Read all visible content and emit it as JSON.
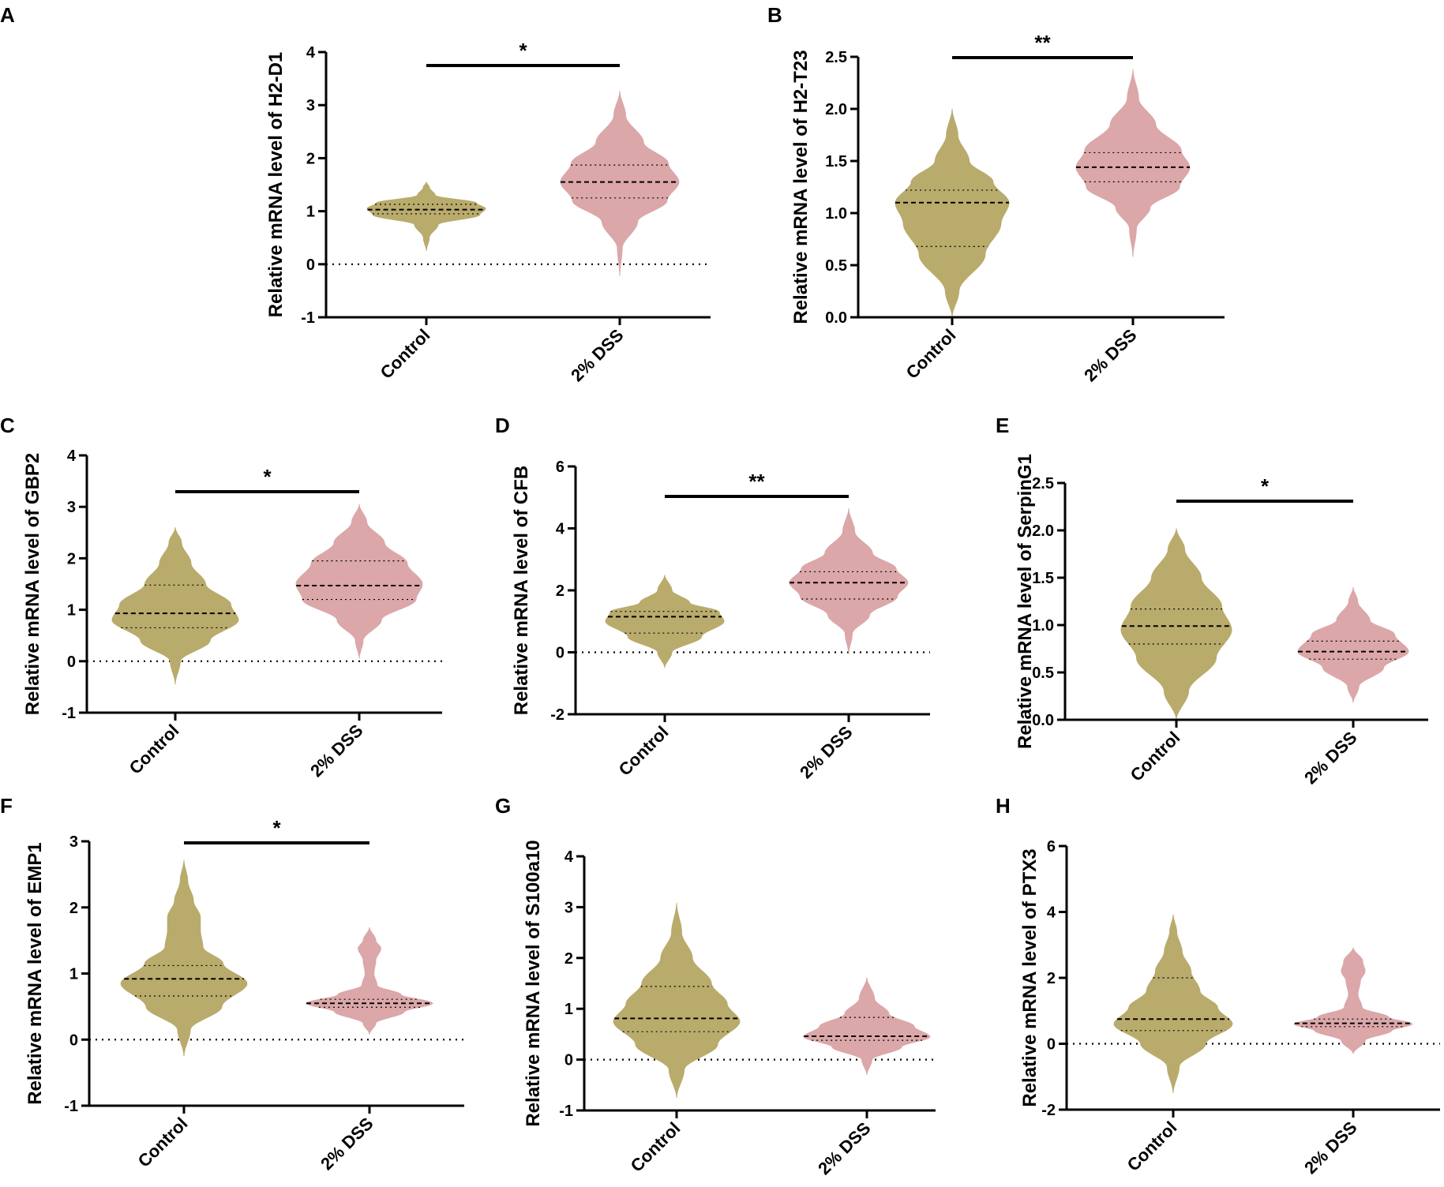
{
  "figure": {
    "colors": {
      "control": "#b9ab6c",
      "dss": "#dba7a9",
      "axis": "#000000"
    },
    "categories": [
      "Control",
      "2% DSS"
    ]
  },
  "chart_data": [
    {
      "panel": "A",
      "type": "violin",
      "ylabel": "Relative mRNA level of H2-D1",
      "ylim": [
        -1,
        4
      ],
      "yticks": [
        "-1",
        "0",
        "1",
        "2",
        "3",
        "4"
      ],
      "zero_line": true,
      "categories": [
        "Control",
        "2% DSS"
      ],
      "significance": "*",
      "series": [
        {
          "name": "Control",
          "min": 0.25,
          "max": 1.55,
          "q1": 0.95,
          "median": 1.03,
          "q3": 1.13,
          "shape": [
            [
              0.25,
              0
            ],
            [
              0.5,
              0.05
            ],
            [
              0.75,
              0.2
            ],
            [
              0.93,
              0.9
            ],
            [
              1.05,
              1
            ],
            [
              1.15,
              0.85
            ],
            [
              1.3,
              0.15
            ],
            [
              1.45,
              0.05
            ],
            [
              1.55,
              0
            ]
          ]
        },
        {
          "name": "2% DSS",
          "min": -0.22,
          "max": 3.27,
          "q1": 1.25,
          "median": 1.55,
          "q3": 1.87,
          "shape": [
            [
              -0.22,
              0
            ],
            [
              0.3,
              0.04
            ],
            [
              0.8,
              0.3
            ],
            [
              1.2,
              0.8
            ],
            [
              1.55,
              1
            ],
            [
              1.9,
              0.82
            ],
            [
              2.3,
              0.4
            ],
            [
              2.8,
              0.1
            ],
            [
              3.27,
              0
            ]
          ]
        }
      ]
    },
    {
      "panel": "B",
      "type": "violin",
      "ylabel": "Relative mRNA level of H2-T23",
      "ylim": [
        0,
        2.5
      ],
      "yticks": [
        "0.0",
        "0.5",
        "1.0",
        "1.5",
        "2.0",
        "2.5"
      ],
      "zero_line": false,
      "categories": [
        "Control",
        "2% DSS"
      ],
      "significance": "**",
      "series": [
        {
          "name": "Control",
          "min": 0.0,
          "max": 2.0,
          "q1": 0.68,
          "median": 1.1,
          "q3": 1.22,
          "shape": [
            [
              0,
              0
            ],
            [
              0.25,
              0.12
            ],
            [
              0.6,
              0.58
            ],
            [
              0.9,
              0.86
            ],
            [
              1.1,
              1
            ],
            [
              1.3,
              0.72
            ],
            [
              1.5,
              0.3
            ],
            [
              1.75,
              0.1
            ],
            [
              2.0,
              0
            ]
          ]
        },
        {
          "name": "2% DSS",
          "min": 0.58,
          "max": 2.38,
          "q1": 1.3,
          "median": 1.44,
          "q3": 1.58,
          "shape": [
            [
              0.58,
              0
            ],
            [
              0.85,
              0.06
            ],
            [
              1.05,
              0.3
            ],
            [
              1.25,
              0.82
            ],
            [
              1.44,
              1
            ],
            [
              1.6,
              0.85
            ],
            [
              1.85,
              0.4
            ],
            [
              2.1,
              0.1
            ],
            [
              2.38,
              0
            ]
          ]
        }
      ]
    },
    {
      "panel": "C",
      "type": "violin",
      "ylabel": "Relative mRNA level of GBP2",
      "ylim": [
        -1,
        4
      ],
      "yticks": [
        "-1",
        "0",
        "1",
        "2",
        "3",
        "4"
      ],
      "zero_line": true,
      "categories": [
        "Control",
        "2% DSS"
      ],
      "significance": "*",
      "series": [
        {
          "name": "Control",
          "min": -0.45,
          "max": 2.6,
          "q1": 0.65,
          "median": 0.93,
          "q3": 1.48,
          "shape": [
            [
              -0.45,
              0
            ],
            [
              0,
              0.08
            ],
            [
              0.4,
              0.55
            ],
            [
              0.8,
              1
            ],
            [
              1.1,
              0.88
            ],
            [
              1.5,
              0.48
            ],
            [
              1.9,
              0.25
            ],
            [
              2.3,
              0.1
            ],
            [
              2.6,
              0
            ]
          ]
        },
        {
          "name": "2% DSS",
          "min": 0.05,
          "max": 3.05,
          "q1": 1.2,
          "median": 1.47,
          "q3": 1.95,
          "shape": [
            [
              0.05,
              0
            ],
            [
              0.4,
              0.06
            ],
            [
              0.8,
              0.35
            ],
            [
              1.2,
              0.9
            ],
            [
              1.5,
              1
            ],
            [
              1.9,
              0.76
            ],
            [
              2.3,
              0.4
            ],
            [
              2.7,
              0.12
            ],
            [
              3.05,
              0
            ]
          ]
        }
      ]
    },
    {
      "panel": "D",
      "type": "violin",
      "ylabel": "Relative mRNA level of CFB",
      "ylim": [
        -2,
        6
      ],
      "yticks": [
        "-2",
        "0",
        "2",
        "4",
        "6"
      ],
      "zero_line": true,
      "categories": [
        "Control",
        "2% DSS"
      ],
      "significance": "**",
      "series": [
        {
          "name": "Control",
          "min": -0.5,
          "max": 2.5,
          "q1": 0.62,
          "median": 1.15,
          "q3": 1.32,
          "shape": [
            [
              -0.5,
              0
            ],
            [
              0,
              0.12
            ],
            [
              0.5,
              0.62
            ],
            [
              1.0,
              1
            ],
            [
              1.3,
              0.92
            ],
            [
              1.6,
              0.42
            ],
            [
              2.0,
              0.12
            ],
            [
              2.5,
              0
            ]
          ]
        },
        {
          "name": "2% DSS",
          "min": -0.05,
          "max": 4.65,
          "q1": 1.72,
          "median": 2.25,
          "q3": 2.6,
          "shape": [
            [
              -0.05,
              0
            ],
            [
              0.6,
              0.06
            ],
            [
              1.2,
              0.35
            ],
            [
              1.8,
              0.82
            ],
            [
              2.25,
              1
            ],
            [
              2.7,
              0.8
            ],
            [
              3.2,
              0.4
            ],
            [
              3.9,
              0.1
            ],
            [
              4.65,
              0
            ]
          ]
        }
      ]
    },
    {
      "panel": "E",
      "type": "violin",
      "ylabel": "Relative mRNA level of SerpinG1",
      "ylim": [
        0,
        2.5
      ],
      "yticks": [
        "0.0",
        "0.5",
        "1.0",
        "1.5",
        "2.0",
        "2.5"
      ],
      "zero_line": false,
      "categories": [
        "Control",
        "2% DSS"
      ],
      "significance": "*",
      "series": [
        {
          "name": "Control",
          "min": 0.0,
          "max": 2.02,
          "q1": 0.8,
          "median": 0.99,
          "q3": 1.17,
          "shape": [
            [
              0,
              0
            ],
            [
              0.3,
              0.22
            ],
            [
              0.65,
              0.72
            ],
            [
              0.95,
              1
            ],
            [
              1.2,
              0.82
            ],
            [
              1.5,
              0.45
            ],
            [
              1.8,
              0.15
            ],
            [
              2.02,
              0
            ]
          ]
        },
        {
          "name": "2% DSS",
          "min": 0.18,
          "max": 1.4,
          "q1": 0.64,
          "median": 0.72,
          "q3": 0.83,
          "shape": [
            [
              0.18,
              0
            ],
            [
              0.35,
              0.1
            ],
            [
              0.55,
              0.55
            ],
            [
              0.72,
              1
            ],
            [
              0.9,
              0.75
            ],
            [
              1.05,
              0.3
            ],
            [
              1.25,
              0.08
            ],
            [
              1.4,
              0
            ]
          ]
        }
      ]
    },
    {
      "panel": "F",
      "type": "violin",
      "ylabel": "Relative mRNA level of EMP1",
      "ylim": [
        -1,
        3
      ],
      "yticks": [
        "-1",
        "0",
        "1",
        "2",
        "3"
      ],
      "zero_line": true,
      "categories": [
        "Control",
        "2% DSS"
      ],
      "significance": "*",
      "series": [
        {
          "name": "Control",
          "min": -0.25,
          "max": 2.72,
          "q1": 0.66,
          "median": 0.92,
          "q3": 1.12,
          "shape": [
            [
              -0.25,
              0
            ],
            [
              0.15,
              0.1
            ],
            [
              0.5,
              0.6
            ],
            [
              0.85,
              1
            ],
            [
              1.15,
              0.62
            ],
            [
              1.4,
              0.3
            ],
            [
              1.65,
              0.26
            ],
            [
              1.85,
              0.26
            ],
            [
              2.1,
              0.15
            ],
            [
              2.4,
              0.06
            ],
            [
              2.72,
              0
            ]
          ]
        },
        {
          "name": "2% DSS",
          "min": 0.08,
          "max": 1.7,
          "q1": 0.49,
          "median": 0.55,
          "q3": 0.61,
          "shape": [
            [
              0.08,
              0
            ],
            [
              0.25,
              0.1
            ],
            [
              0.42,
              0.55
            ],
            [
              0.55,
              1
            ],
            [
              0.68,
              0.5
            ],
            [
              0.82,
              0.12
            ],
            [
              1.0,
              0.07
            ],
            [
              1.2,
              0.1
            ],
            [
              1.38,
              0.18
            ],
            [
              1.5,
              0.1
            ],
            [
              1.7,
              0
            ]
          ]
        }
      ]
    },
    {
      "panel": "G",
      "type": "violin",
      "ylabel": "Relative mRNA level of S100a10",
      "ylim": [
        -1,
        4
      ],
      "yticks": [
        "-1",
        "0",
        "1",
        "2",
        "3",
        "4"
      ],
      "zero_line": true,
      "categories": [
        "Control",
        "2% DSS"
      ],
      "significance": "",
      "series": [
        {
          "name": "Control",
          "min": -0.75,
          "max": 3.08,
          "q1": 0.55,
          "median": 0.81,
          "q3": 1.44,
          "shape": [
            [
              -0.75,
              0
            ],
            [
              -0.2,
              0.12
            ],
            [
              0.3,
              0.65
            ],
            [
              0.75,
              1
            ],
            [
              1.1,
              0.8
            ],
            [
              1.5,
              0.55
            ],
            [
              2.0,
              0.25
            ],
            [
              2.5,
              0.08
            ],
            [
              3.08,
              0
            ]
          ]
        },
        {
          "name": "2% DSS",
          "min": -0.3,
          "max": 1.62,
          "q1": 0.38,
          "median": 0.46,
          "q3": 0.83,
          "shape": [
            [
              -0.3,
              0
            ],
            [
              0.0,
              0.08
            ],
            [
              0.25,
              0.55
            ],
            [
              0.45,
              1
            ],
            [
              0.65,
              0.75
            ],
            [
              0.9,
              0.35
            ],
            [
              1.2,
              0.12
            ],
            [
              1.62,
              0
            ]
          ]
        }
      ]
    },
    {
      "panel": "H",
      "type": "violin",
      "ylabel": "Relative mRNA level of PTX3",
      "ylim": [
        -2,
        6
      ],
      "yticks": [
        "-2",
        "0",
        "2",
        "4",
        "6"
      ],
      "zero_line": true,
      "categories": [
        "Control",
        "2% DSS"
      ],
      "significance": "",
      "series": [
        {
          "name": "Control",
          "min": -1.5,
          "max": 3.92,
          "q1": 0.4,
          "median": 0.75,
          "q3": 2.0,
          "shape": [
            [
              -1.5,
              0
            ],
            [
              -0.7,
              0.1
            ],
            [
              0,
              0.55
            ],
            [
              0.6,
              1
            ],
            [
              1.1,
              0.75
            ],
            [
              1.6,
              0.45
            ],
            [
              2.2,
              0.3
            ],
            [
              2.8,
              0.15
            ],
            [
              3.4,
              0.06
            ],
            [
              3.92,
              0
            ]
          ]
        },
        {
          "name": "2% DSS",
          "min": -0.3,
          "max": 2.92,
          "q1": 0.52,
          "median": 0.62,
          "q3": 0.75,
          "shape": [
            [
              -0.3,
              0
            ],
            [
              0.1,
              0.2
            ],
            [
              0.4,
              0.65
            ],
            [
              0.6,
              1
            ],
            [
              0.8,
              0.6
            ],
            [
              1.1,
              0.15
            ],
            [
              1.5,
              0.08
            ],
            [
              1.9,
              0.12
            ],
            [
              2.2,
              0.2
            ],
            [
              2.5,
              0.16
            ],
            [
              2.92,
              0
            ]
          ]
        }
      ]
    }
  ]
}
